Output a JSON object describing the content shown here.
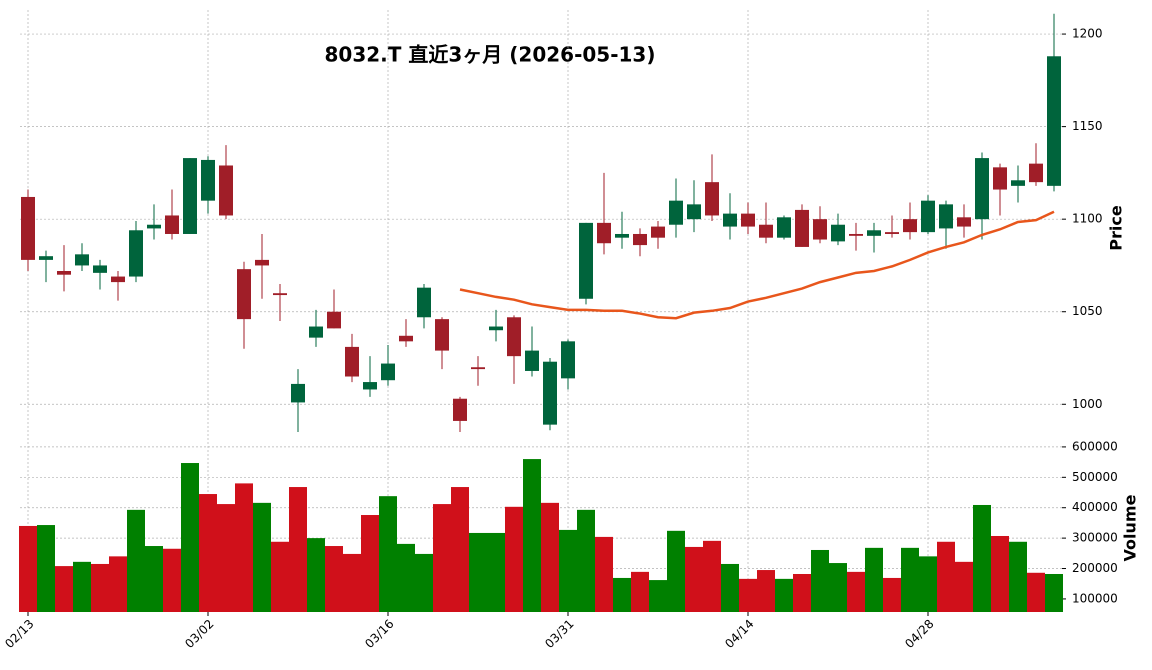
{
  "chart_data": [
    {
      "type": "candlestick",
      "title": "8032.T 直近3ヶ月 (2026-05-13)",
      "ylabel": "Price",
      "x": [
        "02/13",
        null,
        null,
        null,
        null,
        null,
        null,
        null,
        null,
        null,
        "03/02",
        null,
        null,
        null,
        null,
        null,
        null,
        null,
        null,
        null,
        "03/16",
        null,
        null,
        null,
        null,
        null,
        null,
        null,
        null,
        null,
        "03/31",
        null,
        null,
        null,
        null,
        null,
        null,
        null,
        null,
        null,
        "04/14",
        null,
        null,
        null,
        null,
        null,
        null,
        null,
        null,
        null,
        "04/28",
        null,
        null,
        null,
        null,
        null,
        null,
        null
      ],
      "open": [
        1112,
        1078,
        1072,
        1075,
        1071,
        1069,
        1069,
        1095,
        1102,
        1092,
        1110,
        1129,
        1073,
        1078,
        1060,
        1001,
        1036,
        1050,
        1031,
        1008,
        1013,
        1037,
        1047,
        1046,
        1003,
        1020,
        1040,
        1047,
        1018,
        989,
        1014,
        1057,
        1098,
        1090,
        1092,
        1096,
        1097,
        1100,
        1120,
        1096,
        1103,
        1097,
        1090,
        1105,
        1100,
        1088,
        1092,
        1091,
        1093,
        1100,
        1093,
        1095,
        1101,
        1100,
        1128,
        1118,
        1130,
        1118
      ],
      "high": [
        1116,
        1083,
        1086,
        1087,
        1078,
        1072,
        1099,
        1108,
        1116,
        1133,
        1134,
        1140,
        1077,
        1092,
        1065,
        1019,
        1051,
        1062,
        1038,
        1026,
        1032,
        1046,
        1065,
        1047,
        1004,
        1026,
        1051,
        1048,
        1042,
        1025,
        1035,
        1098,
        1125,
        1104,
        1095,
        1099,
        1122,
        1121,
        1135,
        1114,
        1109,
        1109,
        1102,
        1108,
        1107,
        1103,
        1098,
        1098,
        1102,
        1109,
        1113,
        1110,
        1108,
        1136,
        1130,
        1129,
        1141,
        1211
      ],
      "low": [
        1072,
        1066,
        1061,
        1072,
        1062,
        1056,
        1066,
        1089,
        1089,
        1092,
        1103,
        1100,
        1030,
        1057,
        1045,
        985,
        1031,
        1041,
        1012,
        1004,
        1010,
        1031,
        1041,
        1019,
        985,
        1010,
        1034,
        1011,
        1015,
        986,
        1008,
        1054,
        1081,
        1084,
        1080,
        1084,
        1090,
        1093,
        1099,
        1089,
        1092,
        1087,
        1089,
        1085,
        1087,
        1086,
        1083,
        1082,
        1090,
        1089,
        1092,
        1084,
        1090,
        1089,
        1102,
        1109,
        1118,
        1115
      ],
      "close": [
        1078,
        1080,
        1070,
        1081,
        1075,
        1066,
        1094,
        1097,
        1092,
        1133,
        1132,
        1102,
        1046,
        1075,
        1059,
        1011,
        1042,
        1041,
        1015,
        1012,
        1022,
        1034,
        1063,
        1029,
        991,
        1019,
        1042,
        1026,
        1029,
        1023,
        1034,
        1098,
        1087,
        1092,
        1086,
        1090,
        1110,
        1108,
        1102,
        1103,
        1096,
        1090,
        1101,
        1085,
        1089,
        1097,
        1091,
        1094,
        1092,
        1093,
        1110,
        1108,
        1096,
        1133,
        1116,
        1121,
        1120,
        1188
      ],
      "up_color": "#00643c",
      "down_color": "#a01e28",
      "ma": {
        "color": "#e8561c",
        "values": [
          null,
          null,
          null,
          null,
          null,
          null,
          null,
          null,
          null,
          null,
          null,
          null,
          null,
          null,
          null,
          null,
          null,
          null,
          null,
          null,
          null,
          null,
          null,
          null,
          1062,
          1060,
          1058,
          1056.5,
          1054,
          1052.5,
          1051,
          1051,
          1050.5,
          1050.5,
          1049,
          1047,
          1046.5,
          1049.5,
          1050.5,
          1052,
          1055.5,
          1057.5,
          1060,
          1062.5,
          1066,
          1068.5,
          1071,
          1072,
          1074.5,
          1078,
          1082,
          1085,
          1087.5,
          1091.5,
          1094.5,
          1098.5,
          1099.5,
          1104
        ]
      },
      "ylim": [
        978,
        1213
      ],
      "yticks": [
        1000,
        1050,
        1100,
        1150,
        1200
      ],
      "grid": true
    },
    {
      "type": "bar",
      "ylabel": "Volume",
      "values": [
        340000,
        343000,
        208000,
        222000,
        215000,
        240000,
        393000,
        274000,
        265000,
        547000,
        445000,
        412000,
        480000,
        416000,
        288000,
        468000,
        300000,
        274000,
        248000,
        376000,
        438000,
        281000,
        248000,
        412000,
        468000,
        317000,
        317000,
        403000,
        560000,
        416000,
        327000,
        393000,
        304000,
        169000,
        189000,
        162000,
        324000,
        271000,
        291000,
        215000,
        166000,
        195000,
        166000,
        182000,
        261000,
        218000,
        189000,
        268000,
        169000,
        268000,
        240000,
        288000,
        222000,
        409000,
        307000,
        288000,
        186000,
        182000
      ],
      "up_color": "#008000",
      "down_color": "#d0101a",
      "ylim": [
        57000,
        603000
      ],
      "yticks": [
        100000,
        200000,
        300000,
        400000,
        500000,
        600000
      ],
      "grid": true
    }
  ]
}
